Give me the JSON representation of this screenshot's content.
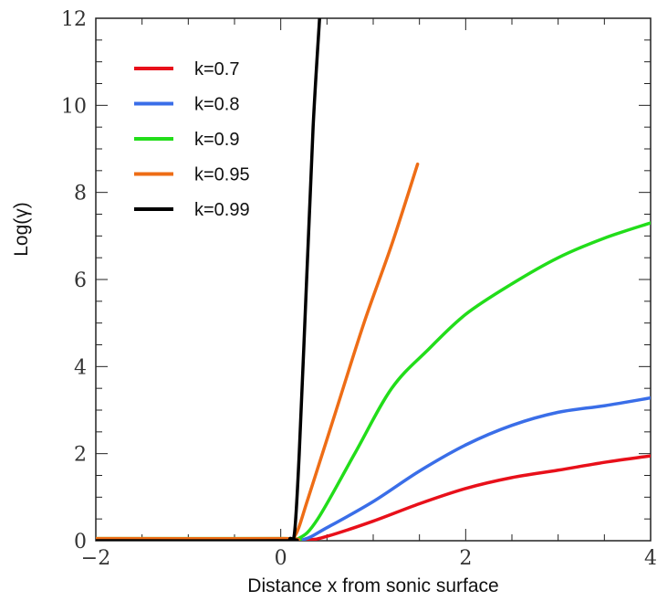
{
  "chart_data": {
    "type": "line",
    "xlabel": "Distance x from sonic surface",
    "ylabel": "Log(γ)",
    "xlim": [
      -2,
      4
    ],
    "ylim": [
      0,
      12
    ],
    "x_ticks": [
      -2,
      0,
      2,
      4
    ],
    "y_ticks": [
      0,
      2,
      4,
      6,
      8,
      10,
      12
    ],
    "x_tick_labels": [
      "−2",
      "0",
      "2",
      "4"
    ],
    "y_tick_labels": [
      "0",
      "2",
      "4",
      "6",
      "8",
      "10",
      "12"
    ],
    "grid": false,
    "legend_position": "top-left",
    "series": [
      {
        "name": "k=0.7",
        "color": "#e8101a",
        "points": [
          [
            -2,
            0.02
          ],
          [
            0.0,
            0.02
          ],
          [
            0.3,
            0.02
          ],
          [
            0.5,
            0.1
          ],
          [
            1.0,
            0.45
          ],
          [
            1.5,
            0.85
          ],
          [
            2.0,
            1.2
          ],
          [
            2.5,
            1.45
          ],
          [
            3.0,
            1.62
          ],
          [
            3.5,
            1.8
          ],
          [
            4.0,
            1.95
          ]
        ]
      },
      {
        "name": "k=0.8",
        "color": "#3a6ee8",
        "points": [
          [
            -2,
            0.02
          ],
          [
            0.0,
            0.02
          ],
          [
            0.25,
            0.03
          ],
          [
            0.5,
            0.3
          ],
          [
            1.0,
            0.9
          ],
          [
            1.5,
            1.6
          ],
          [
            2.0,
            2.2
          ],
          [
            2.5,
            2.65
          ],
          [
            3.0,
            2.95
          ],
          [
            3.5,
            3.1
          ],
          [
            4.0,
            3.28
          ]
        ]
      },
      {
        "name": "k=0.9",
        "color": "#22dd1a",
        "points": [
          [
            -2,
            0.05
          ],
          [
            0.0,
            0.05
          ],
          [
            0.2,
            0.06
          ],
          [
            0.4,
            0.5
          ],
          [
            0.8,
            2.0
          ],
          [
            1.2,
            3.5
          ],
          [
            1.6,
            4.4
          ],
          [
            2.0,
            5.2
          ],
          [
            2.5,
            5.9
          ],
          [
            3.0,
            6.5
          ],
          [
            3.5,
            6.95
          ],
          [
            4.0,
            7.3
          ]
        ]
      },
      {
        "name": "k=0.95",
        "color": "#ee6d16",
        "points": [
          [
            -2,
            0.05
          ],
          [
            0.0,
            0.05
          ],
          [
            0.15,
            0.1
          ],
          [
            0.3,
            1.0
          ],
          [
            0.6,
            3.0
          ],
          [
            0.9,
            5.0
          ],
          [
            1.2,
            6.8
          ],
          [
            1.48,
            8.65
          ]
        ]
      },
      {
        "name": "k=0.99",
        "color": "#000000",
        "points": [
          [
            -2,
            0.0
          ],
          [
            0.0,
            0.0
          ],
          [
            0.1,
            0.05
          ],
          [
            0.15,
            0.2
          ],
          [
            0.2,
            2.0
          ],
          [
            0.28,
            6.0
          ],
          [
            0.35,
            9.5
          ],
          [
            0.42,
            12.0
          ]
        ]
      }
    ]
  }
}
